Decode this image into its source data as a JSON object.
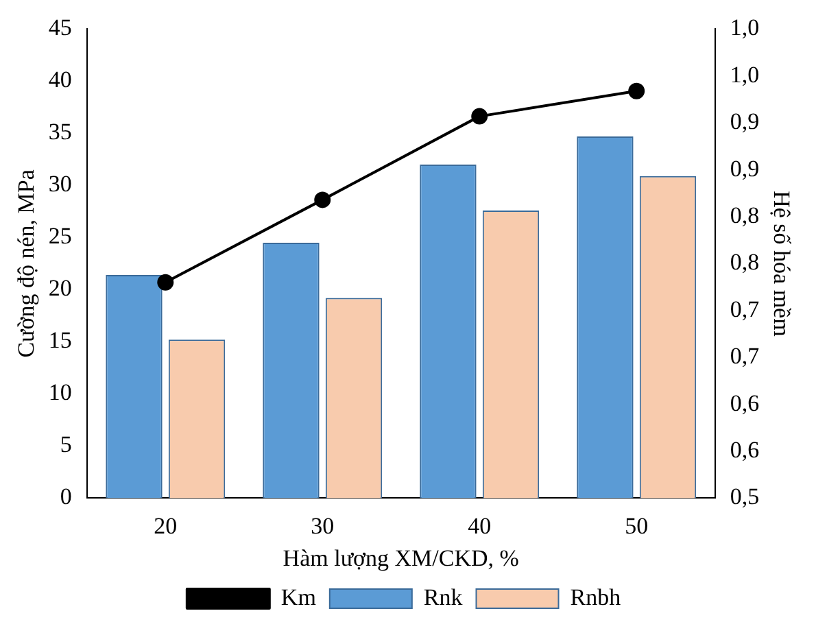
{
  "chart_data": {
    "type": "bar",
    "xlabel": "Hàm lượng XM/CKD, %",
    "ylabel": "Cường độ nén, MPa",
    "y2label": "Hệ số hóa mềm",
    "categories": [
      "20",
      "30",
      "40",
      "50"
    ],
    "series": [
      {
        "name": "Rnk",
        "color": "#5b9bd5",
        "values": [
          21.4,
          24.5,
          32.0,
          34.7
        ]
      },
      {
        "name": "Rnbh",
        "color": "#f8cbad",
        "values": [
          15.2,
          19.2,
          27.6,
          30.9
        ]
      },
      {
        "name": "Km",
        "type": "line",
        "axis": "y2",
        "color": "#000000",
        "marker": "circle",
        "values": [
          0.73,
          0.818,
          0.907,
          0.934
        ]
      }
    ],
    "ylim": [
      0,
      45
    ],
    "yticks": [
      0,
      5,
      10,
      15,
      20,
      25,
      30,
      35,
      40,
      45
    ],
    "y2lim": [
      0.5,
      1.0
    ],
    "y2ticks": [
      {
        "value": 0.5,
        "label": "0,5"
      },
      {
        "value": 0.55,
        "label": "0,6"
      },
      {
        "value": 0.6,
        "label": "0,6"
      },
      {
        "value": 0.65,
        "label": "0,7"
      },
      {
        "value": 0.7,
        "label": "0,7"
      },
      {
        "value": 0.75,
        "label": "0,8"
      },
      {
        "value": 0.8,
        "label": "0,8"
      },
      {
        "value": 0.85,
        "label": "0,9"
      },
      {
        "value": 0.9,
        "label": "0,9"
      },
      {
        "value": 0.95,
        "label": "1,0"
      },
      {
        "value": 1.0,
        "label": "1,0"
      }
    ],
    "grid": false,
    "legend": "bottom"
  }
}
